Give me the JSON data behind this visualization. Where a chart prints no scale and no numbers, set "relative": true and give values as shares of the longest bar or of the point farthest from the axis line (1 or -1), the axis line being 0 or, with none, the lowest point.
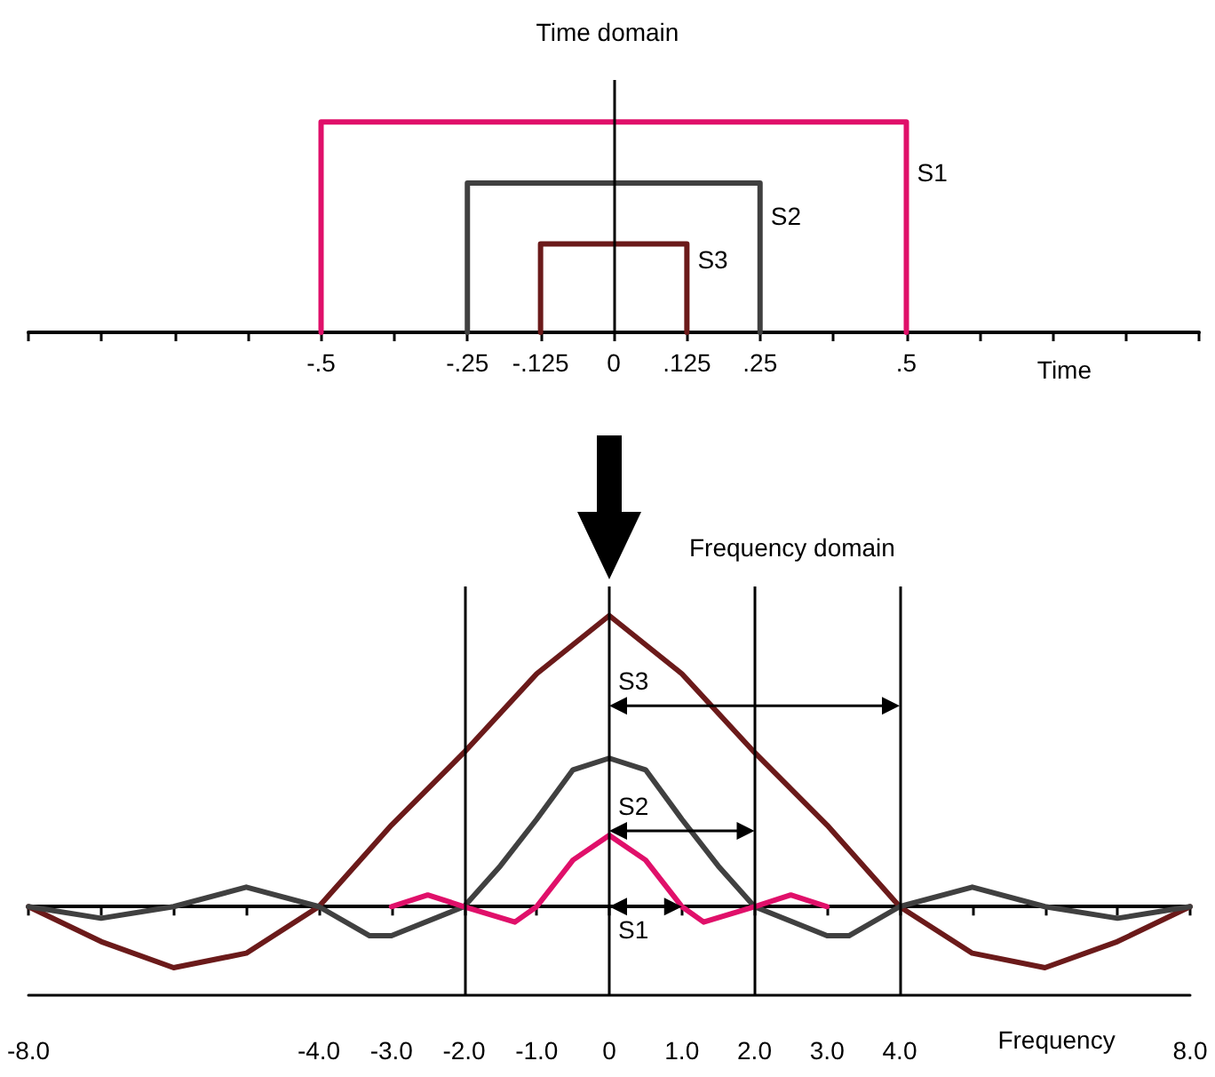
{
  "chart_data": [
    {
      "type": "line",
      "title": "Time domain",
      "xlabel": "Time",
      "relative": true,
      "marker": "none",
      "xlim": [
        -1,
        1
      ],
      "xticks": [
        {
          "value": -1,
          "label": null
        },
        {
          "value": -0.875,
          "label": null
        },
        {
          "value": -0.75,
          "label": null
        },
        {
          "value": -0.625,
          "label": null
        },
        {
          "value": -0.5,
          "label": "-.5"
        },
        {
          "value": -0.375,
          "label": null
        },
        {
          "value": -0.25,
          "label": "-.25"
        },
        {
          "value": -0.125,
          "label": "-.125"
        },
        {
          "value": 0,
          "label": "0"
        },
        {
          "value": 0.125,
          "label": ".125"
        },
        {
          "value": 0.25,
          "label": ".25"
        },
        {
          "value": 0.375,
          "label": null
        },
        {
          "value": 0.5,
          "label": ".5"
        },
        {
          "value": 0.625,
          "label": null
        },
        {
          "value": 0.75,
          "label": null
        },
        {
          "value": 0.875,
          "label": null
        },
        {
          "value": 1,
          "label": null
        }
      ],
      "ref_lines": [
        {
          "axis": "x",
          "value": 0,
          "color": "#000000"
        }
      ],
      "series": [
        {
          "name": "S1",
          "color": "#e0106a",
          "x": [
            -0.5,
            -0.5,
            0.5,
            0.5
          ],
          "values": [
            0,
            1,
            1,
            0
          ]
        },
        {
          "name": "S2",
          "color": "#404040",
          "x": [
            -0.25,
            -0.25,
            0.25,
            0.25
          ],
          "values": [
            0,
            0.71,
            0.71,
            0
          ]
        },
        {
          "name": "S3",
          "color": "#6b1a1a",
          "x": [
            -0.125,
            -0.125,
            0.125,
            0.125
          ],
          "values": [
            0,
            0.42,
            0.42,
            0
          ]
        }
      ]
    },
    {
      "type": "line",
      "title": "Frequency domain",
      "xlabel": "Frequency",
      "relative": true,
      "marker": "none",
      "xlim": [
        -8,
        8
      ],
      "xticks": [
        {
          "value": -8,
          "label": "-8.0"
        },
        {
          "value": -7,
          "label": null
        },
        {
          "value": -6,
          "label": null
        },
        {
          "value": -5,
          "label": null
        },
        {
          "value": -4,
          "label": "-4.0"
        },
        {
          "value": -3,
          "label": "-3.0"
        },
        {
          "value": -2,
          "label": "-2.0"
        },
        {
          "value": -1,
          "label": "-1.0"
        },
        {
          "value": 0,
          "label": "0"
        },
        {
          "value": 1,
          "label": "1.0"
        },
        {
          "value": 2,
          "label": "2.0"
        },
        {
          "value": 3,
          "label": "3.0"
        },
        {
          "value": 4,
          "label": "4.0"
        },
        {
          "value": 5,
          "label": null
        },
        {
          "value": 6,
          "label": null
        },
        {
          "value": 7,
          "label": null
        },
        {
          "value": 8,
          "label": "8.0"
        }
      ],
      "ref_lines": [
        {
          "axis": "x",
          "value": 0,
          "color": "#000000"
        },
        {
          "axis": "x",
          "value": -2,
          "color": "#000000"
        },
        {
          "axis": "x",
          "value": 2,
          "color": "#000000"
        },
        {
          "axis": "x",
          "value": 4,
          "color": "#000000"
        }
      ],
      "annotations": [
        {
          "text": "S3",
          "x": 4,
          "y": 0.69
        },
        {
          "text": "S2",
          "x": 2,
          "y": 0.26
        },
        {
          "text": "S1",
          "x": 1,
          "y": 0
        }
      ],
      "series": [
        {
          "color": "#6b1a1a",
          "x": [
            -8,
            -7,
            -6,
            -5,
            -4,
            -3,
            -2,
            -1,
            0,
            1,
            2,
            3,
            4,
            5,
            6,
            7,
            8
          ],
          "values": [
            0,
            -0.12,
            -0.21,
            -0.16,
            0,
            0.28,
            0.53,
            0.8,
            1,
            0.8,
            0.53,
            0.28,
            0,
            -0.16,
            -0.21,
            -0.12,
            0
          ]
        },
        {
          "color": "#404040",
          "x": [
            -8,
            -7,
            -6,
            -5,
            -4,
            -3.3,
            -3,
            -2,
            -1.5,
            -1,
            -0.5,
            0,
            0.5,
            1,
            1.5,
            2,
            3,
            3.3,
            4,
            5,
            6,
            7,
            8
          ],
          "values": [
            0,
            -0.04,
            0,
            0.067,
            0,
            -0.1,
            -0.1,
            0,
            0.14,
            0.3,
            0.47,
            0.51,
            0.47,
            0.3,
            0.14,
            0,
            -0.1,
            -0.1,
            0,
            0.067,
            0,
            -0.04,
            0
          ]
        },
        {
          "color": "#e0106a",
          "x": [
            -3,
            -2.5,
            -2,
            -1.3,
            -1,
            -0.5,
            0,
            0.5,
            1,
            1.3,
            2,
            2.5,
            3
          ],
          "values": [
            0,
            0.04,
            0,
            -0.053,
            0,
            0.16,
            0.245,
            0.16,
            0,
            -0.053,
            0,
            0.04,
            0
          ]
        }
      ]
    }
  ]
}
